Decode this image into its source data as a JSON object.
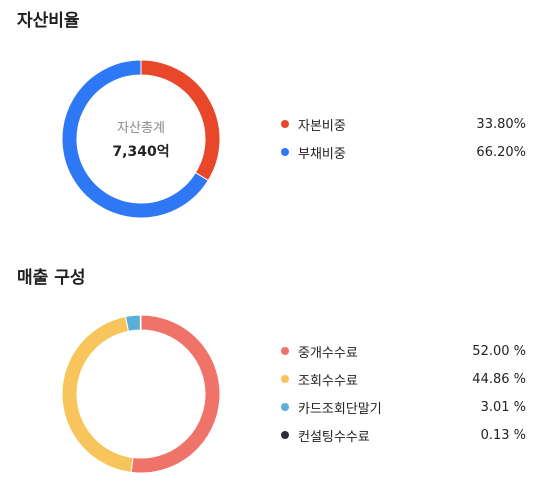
{
  "chart_data": [
    {
      "type": "pie",
      "title": "자산비율",
      "center_label": "자산총계",
      "center_value": "7,340억",
      "categories": [
        "자본비중",
        "부채비중"
      ],
      "values": [
        33.8,
        66.2
      ],
      "value_labels": [
        "33.80%",
        "66.20%"
      ],
      "colors": [
        "#e8472a",
        "#2f78f5"
      ],
      "legend_placement": "right"
    },
    {
      "type": "pie",
      "title": "매출 구성",
      "categories": [
        "중개수수료",
        "조회수수료",
        "카드조회단말기",
        "컨설팅수수료"
      ],
      "values": [
        52.0,
        44.86,
        3.01,
        0.13
      ],
      "value_labels": [
        "52.00 %",
        "44.86 %",
        "3.01 %",
        "0.13 %"
      ],
      "colors": [
        "#f0736a",
        "#f7c55b",
        "#5aafd9",
        "#2b2b3a"
      ],
      "legend_placement": "right"
    }
  ]
}
